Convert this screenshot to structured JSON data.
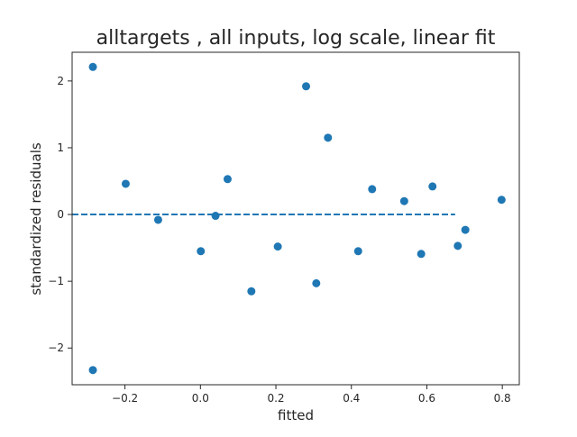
{
  "chart_data": {
    "type": "scatter",
    "title": "alltargets , all inputs, log scale, linear fit",
    "xlabel": "fitted",
    "ylabel": "standardized residuals",
    "xlim": [
      -0.34,
      0.845
    ],
    "ylim": [
      -2.55,
      2.43
    ],
    "xticks": [
      -0.2,
      0.0,
      0.2,
      0.4,
      0.6,
      0.8
    ],
    "xtick_labels": [
      "−0.2",
      "0.0",
      "0.2",
      "0.4",
      "0.6",
      "0.8"
    ],
    "yticks": [
      -2,
      -1,
      0,
      1,
      2
    ],
    "ytick_labels": [
      "−2",
      "−1",
      "0",
      "1",
      "2"
    ],
    "grid": false,
    "point_color": "#1f77b4",
    "reference_line": {
      "y": 0,
      "x_range": [
        -0.34,
        0.675
      ],
      "style": "dashed",
      "color": "#1f77b4"
    },
    "points": [
      {
        "x": -0.285,
        "y": 2.21
      },
      {
        "x": -0.285,
        "y": -2.33
      },
      {
        "x": -0.198,
        "y": 0.46
      },
      {
        "x": -0.112,
        "y": -0.08
      },
      {
        "x": 0.001,
        "y": -0.55
      },
      {
        "x": 0.04,
        "y": -0.02
      },
      {
        "x": 0.072,
        "y": 0.53
      },
      {
        "x": 0.135,
        "y": -1.15
      },
      {
        "x": 0.205,
        "y": -0.48
      },
      {
        "x": 0.28,
        "y": 1.92
      },
      {
        "x": 0.307,
        "y": -1.03
      },
      {
        "x": 0.338,
        "y": 1.15
      },
      {
        "x": 0.418,
        "y": -0.55
      },
      {
        "x": 0.455,
        "y": 0.38
      },
      {
        "x": 0.54,
        "y": 0.2
      },
      {
        "x": 0.585,
        "y": -0.59
      },
      {
        "x": 0.615,
        "y": 0.42
      },
      {
        "x": 0.682,
        "y": -0.47
      },
      {
        "x": 0.702,
        "y": -0.23
      },
      {
        "x": 0.798,
        "y": 0.22
      }
    ]
  }
}
